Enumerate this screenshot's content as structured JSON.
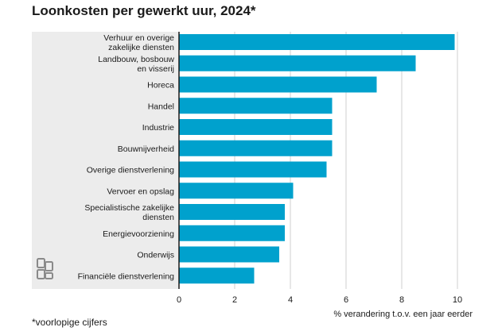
{
  "title": "Loonkosten per gewerkt uur, 2024*",
  "footnote": "*voorlopige cijfers",
  "logo_icon": "cbs-logo-icon",
  "colors": {
    "bar": "#00a1cd",
    "label_panel": "#ececec",
    "grid": "#cfcfcf",
    "axis": "#1a1a1a"
  },
  "chart_data": {
    "type": "bar",
    "orientation": "horizontal",
    "categories": [
      "Verhuur en overige zakelijke diensten",
      "Landbouw, bosbouw en visserij",
      "Horeca",
      "Handel",
      "Industrie",
      "Bouwnijverheid",
      "Overige dienstverlening",
      "Vervoer en opslag",
      "Specialistische zakelijke diensten",
      "Energievoorziening",
      "Onderwijs",
      "Financiële dienstverlening"
    ],
    "category_lines": [
      [
        "Verhuur en overige",
        "zakelijke diensten"
      ],
      [
        "Landbouw, bosbouw",
        "en visserij"
      ],
      [
        "Horeca"
      ],
      [
        "Handel"
      ],
      [
        "Industrie"
      ],
      [
        "Bouwnijverheid"
      ],
      [
        "Overige dienstverlening"
      ],
      [
        "Vervoer en opslag"
      ],
      [
        "Specialistische zakelijke",
        "diensten"
      ],
      [
        "Energievoorziening"
      ],
      [
        "Onderwijs"
      ],
      [
        "Financiële dienstverlening"
      ]
    ],
    "values": [
      9.9,
      8.5,
      7.1,
      5.5,
      5.5,
      5.5,
      5.3,
      4.1,
      3.8,
      3.8,
      3.6,
      2.7
    ],
    "xlabel": "% verandering t.o.v. een jaar eerder",
    "xlim": [
      0,
      10
    ],
    "xticks": [
      0,
      2,
      4,
      6,
      8,
      10
    ],
    "grid": true
  }
}
